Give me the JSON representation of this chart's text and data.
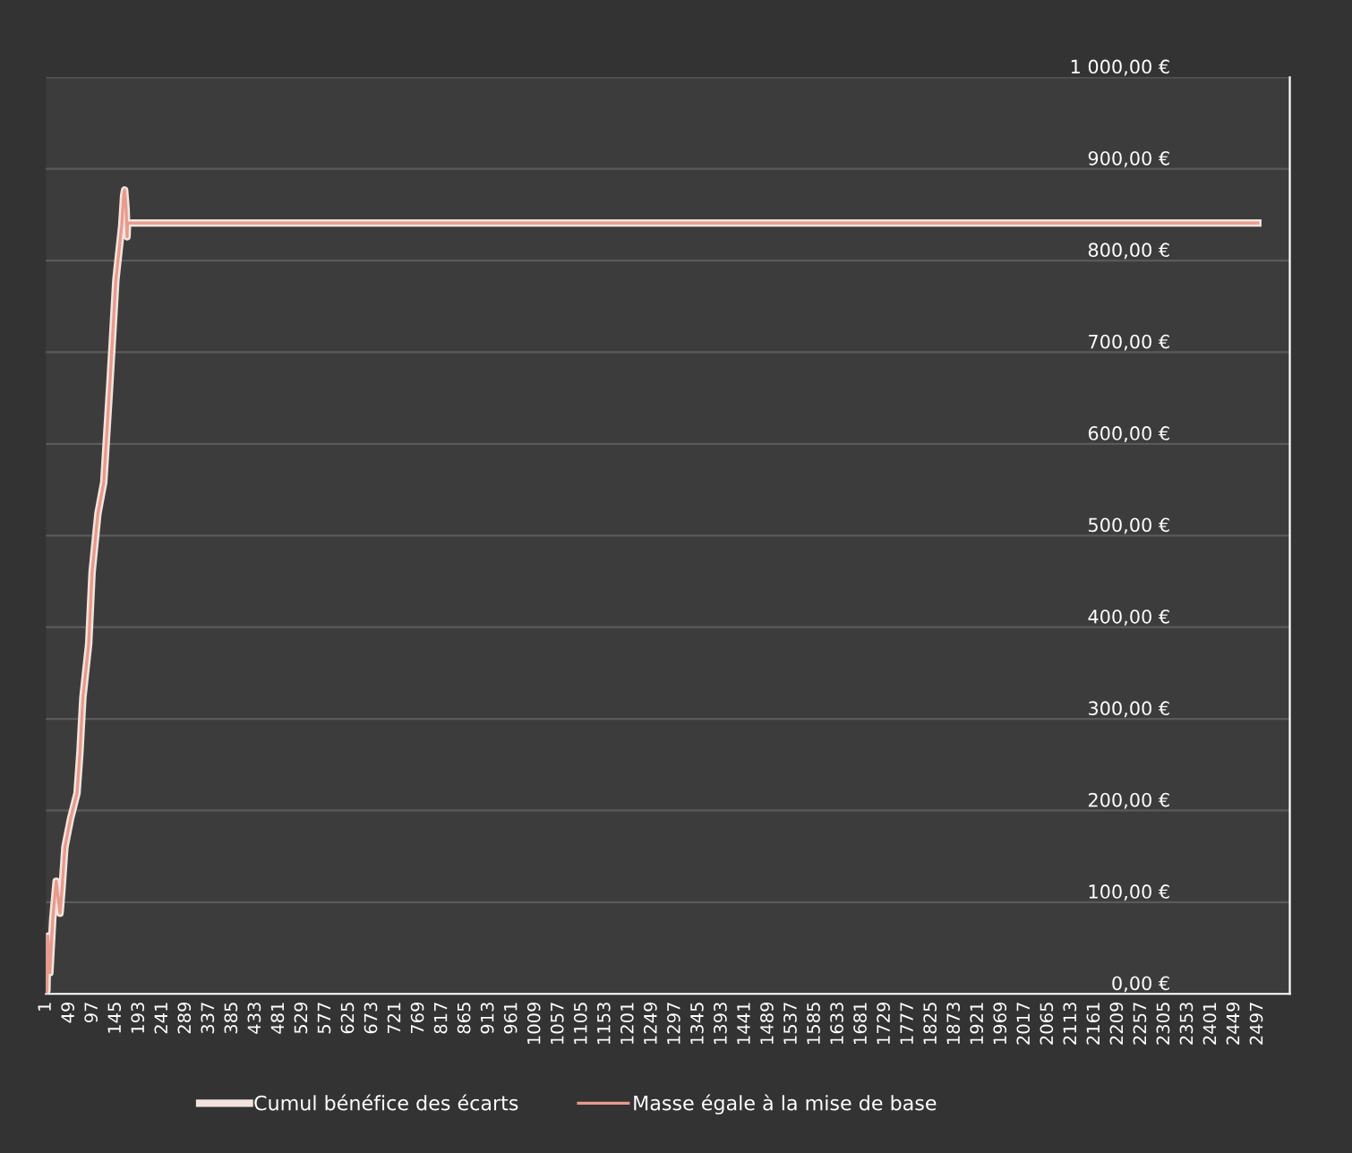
{
  "chart_data": {
    "type": "line",
    "series": [
      {
        "name": "Cumul bénéfice des écarts",
        "color": "#f2e4dc",
        "x": [
          1,
          3,
          5,
          9,
          15,
          22,
          30,
          34,
          40,
          52,
          65,
          71,
          77,
          89,
          96,
          108,
          120,
          133,
          145,
          157,
          161,
          163,
          166,
          168,
          169,
          2497
        ],
        "values": [
          0,
          4,
          63,
          23,
          82,
          123,
          88,
          114,
          160,
          192,
          219,
          264,
          323,
          382,
          460,
          524,
          558,
          669,
          779,
          838,
          871,
          877,
          857,
          826,
          841,
          841
        ]
      },
      {
        "name": "Masse égale à la mise de base",
        "color": "#e89a8e",
        "x": [
          1,
          3,
          5,
          9,
          15,
          22,
          30,
          34,
          40,
          52,
          65,
          71,
          77,
          89,
          96,
          108,
          120,
          133,
          145,
          157,
          161,
          163,
          166,
          168,
          169,
          2497
        ],
        "values": [
          0,
          4,
          63,
          23,
          82,
          123,
          88,
          114,
          160,
          192,
          219,
          264,
          323,
          382,
          460,
          524,
          558,
          669,
          779,
          838,
          871,
          877,
          857,
          826,
          841,
          841
        ]
      }
    ],
    "xlim": [
      1,
      2563
    ],
    "xticks": [
      1,
      49,
      97,
      145,
      193,
      241,
      289,
      337,
      385,
      433,
      481,
      529,
      577,
      625,
      673,
      721,
      769,
      817,
      865,
      913,
      961,
      1009,
      1057,
      1105,
      1153,
      1201,
      1249,
      1297,
      1345,
      1393,
      1441,
      1489,
      1537,
      1585,
      1633,
      1681,
      1729,
      1777,
      1825,
      1873,
      1921,
      1969,
      2017,
      2065,
      2113,
      2161,
      2209,
      2257,
      2305,
      2353,
      2401,
      2449,
      2497
    ],
    "ylim": [
      0,
      1000
    ],
    "yticks": [
      {
        "value": 0,
        "label": "0,00 €"
      },
      {
        "value": 100,
        "label": "100,00 €"
      },
      {
        "value": 200,
        "label": "200,00 €"
      },
      {
        "value": 300,
        "label": "300,00 €"
      },
      {
        "value": 400,
        "label": "400,00 €"
      },
      {
        "value": 500,
        "label": "500,00 €"
      },
      {
        "value": 600,
        "label": "600,00 €"
      },
      {
        "value": 700,
        "label": "700,00 €"
      },
      {
        "value": 800,
        "label": "800,00 €"
      },
      {
        "value": 900,
        "label": "900,00 €"
      },
      {
        "value": 1000,
        "label": "1 000,00 €"
      }
    ],
    "grid": "y",
    "legend": "bottom",
    "marker": "none",
    "line_style": "solid"
  }
}
